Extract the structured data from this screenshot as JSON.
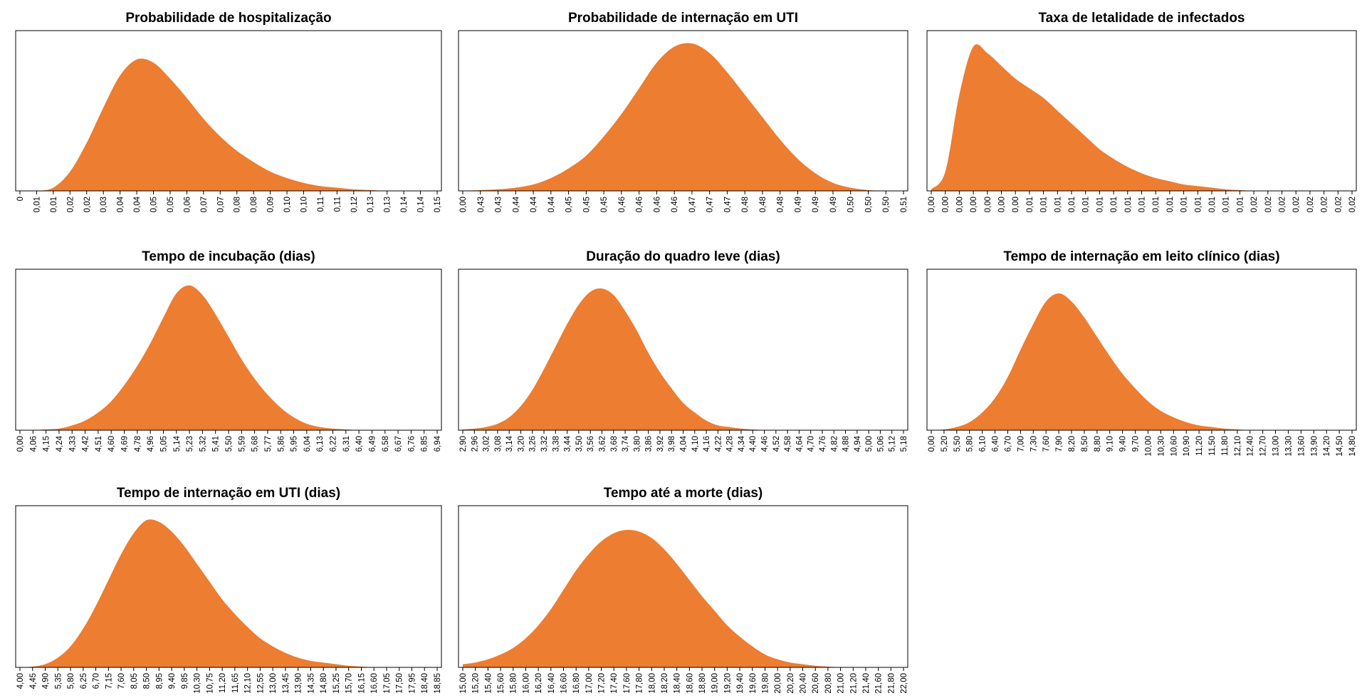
{
  "chart_data": [
    {
      "type": "area",
      "title": "Probabilidade de hospitalização",
      "color": "#ed7d31",
      "ylim": [
        0,
        100
      ],
      "categories": [
        "0",
        "0,01",
        "0,01",
        "0,02",
        "0,02",
        "0,03",
        "0,04",
        "0,04",
        "0,05",
        "0,05",
        "0,06",
        "0,07",
        "0,07",
        "0,08",
        "0,08",
        "0,09",
        "0,10",
        "0,10",
        "0,11",
        "0,11",
        "0,12",
        "0,13",
        "0,13",
        "0,14",
        "0,14",
        "0,15"
      ],
      "values": [
        0,
        0,
        2,
        12,
        30,
        52,
        72,
        82,
        80,
        70,
        58,
        45,
        34,
        25,
        18,
        12,
        8,
        5,
        3,
        2,
        1,
        0.5,
        0,
        0,
        0,
        0
      ]
    },
    {
      "type": "area",
      "title": "Probabilidade de internação em UTI",
      "color": "#ed7d31",
      "ylim": [
        0,
        100
      ],
      "categories": [
        "0,00",
        "0,43",
        "0,43",
        "0,44",
        "0,44",
        "0,44",
        "0,45",
        "0,45",
        "0,45",
        "0,46",
        "0,46",
        "0,46",
        "0,46",
        "0,47",
        "0,47",
        "0,47",
        "0,48",
        "0,48",
        "0,48",
        "0,49",
        "0,49",
        "0,49",
        "0,50",
        "0,50",
        "0,50",
        "0,51"
      ],
      "values": [
        0,
        0.5,
        1,
        2,
        4,
        8,
        14,
        22,
        34,
        48,
        64,
        80,
        90,
        92,
        86,
        74,
        60,
        46,
        32,
        20,
        11,
        5,
        2,
        0.5,
        0,
        0
      ]
    },
    {
      "type": "area",
      "title": "Taxa de letalidade de infectados",
      "color": "#ed7d31",
      "ylim": [
        0,
        100
      ],
      "categories": [
        "0,00",
        "0,00",
        "0,00",
        "0,00",
        "0,00",
        "0,00",
        "0,00",
        "0,01",
        "0,01",
        "0,01",
        "0,01",
        "0,01",
        "0,01",
        "0,01",
        "0,01",
        "0,01",
        "0,01",
        "0,01",
        "0,01",
        "0,01",
        "0,01",
        "0,01",
        "0,01",
        "0,02",
        "0,02",
        "0,02",
        "0,02",
        "0,02",
        "0,02",
        "0,02",
        "0,02"
      ],
      "values": [
        1,
        12,
        60,
        90,
        86,
        78,
        70,
        64,
        58,
        50,
        42,
        34,
        26,
        20,
        15,
        11,
        8,
        6,
        4,
        3,
        2,
        1,
        0.5,
        0,
        0,
        0,
        0,
        0,
        0,
        0,
        0
      ]
    },
    {
      "type": "area",
      "title": "Tempo de incubação (dias)",
      "color": "#ed7d31",
      "ylim": [
        0,
        100
      ],
      "categories": [
        "0,00",
        "4,06",
        "4,15",
        "4,24",
        "4,33",
        "4,42",
        "4,51",
        "4,60",
        "4,69",
        "4,78",
        "4,96",
        "5,05",
        "5,14",
        "5,23",
        "5,32",
        "5,41",
        "5,50",
        "5,59",
        "5,68",
        "5,77",
        "5,86",
        "5,95",
        "6,04",
        "6,13",
        "6,22",
        "6,31",
        "6,40",
        "6,49",
        "6,58",
        "6,67",
        "6,76",
        "6,85",
        "6,94"
      ],
      "values": [
        0,
        0,
        0.5,
        1,
        3,
        6,
        11,
        18,
        28,
        40,
        54,
        70,
        85,
        90,
        84,
        72,
        58,
        44,
        32,
        22,
        14,
        8,
        4,
        2,
        1,
        0.5,
        0,
        0,
        0,
        0,
        0,
        0,
        0
      ]
    },
    {
      "type": "area",
      "title": "Duração do quadro leve (dias)",
      "color": "#ed7d31",
      "ylim": [
        0,
        100
      ],
      "categories": [
        "2,90",
        "2,96",
        "3,02",
        "3,08",
        "3,14",
        "3,20",
        "3,26",
        "3,32",
        "3,38",
        "3,44",
        "3,50",
        "3,56",
        "3,62",
        "3,68",
        "3,74",
        "3,80",
        "3,86",
        "3,92",
        "3,98",
        "4,04",
        "4,10",
        "4,16",
        "4,22",
        "4,28",
        "4,34",
        "4,40",
        "4,46",
        "4,52",
        "4,58",
        "4,64",
        "4,70",
        "4,76",
        "4,82",
        "4,88",
        "4,94",
        "5,00",
        "5,06",
        "5,12",
        "5,18"
      ],
      "values": [
        0.5,
        1,
        2,
        4,
        8,
        15,
        25,
        38,
        52,
        66,
        78,
        86,
        88,
        84,
        74,
        62,
        48,
        36,
        26,
        17,
        11,
        6,
        3,
        2,
        1,
        0.5,
        0,
        0,
        0,
        0,
        0,
        0,
        0,
        0,
        0,
        0,
        0,
        0,
        0
      ]
    },
    {
      "type": "area",
      "title": "Tempo de internação em leito clínico (dias)",
      "color": "#ed7d31",
      "ylim": [
        0,
        100
      ],
      "categories": [
        "0,00",
        "5,20",
        "5,50",
        "5,80",
        "6,10",
        "6,40",
        "6,70",
        "7,00",
        "7,30",
        "7,60",
        "7,90",
        "8,20",
        "8,50",
        "8,80",
        "9,10",
        "9,40",
        "9,70",
        "10,00",
        "10,30",
        "10,60",
        "10,90",
        "11,20",
        "11,50",
        "11,80",
        "12,10",
        "12,40",
        "12,70",
        "13,00",
        "13,30",
        "13,60",
        "13,90",
        "14,20",
        "14,50",
        "14,80"
      ],
      "values": [
        0,
        0.5,
        2,
        5,
        11,
        20,
        33,
        50,
        66,
        80,
        85,
        80,
        70,
        58,
        46,
        35,
        26,
        18,
        12,
        8,
        5,
        3,
        2,
        1,
        0.5,
        0,
        0,
        0,
        0,
        0,
        0,
        0,
        0,
        0
      ]
    },
    {
      "type": "area",
      "title": "Tempo de internação em UTI (dias)",
      "color": "#ed7d31",
      "ylim": [
        0,
        100
      ],
      "categories": [
        "4,00",
        "4,45",
        "4,90",
        "5,35",
        "5,80",
        "6,25",
        "6,70",
        "7,15",
        "7,60",
        "8,05",
        "8,50",
        "8,95",
        "9,40",
        "9,85",
        "10,30",
        "10,75",
        "11,20",
        "11,65",
        "12,10",
        "12,55",
        "13,00",
        "13,45",
        "13,90",
        "14,35",
        "14,80",
        "15,25",
        "15,70",
        "16,15",
        "16,60",
        "17,05",
        "17,50",
        "17,95",
        "18,40",
        "18,85"
      ],
      "values": [
        0,
        0.5,
        2,
        6,
        13,
        24,
        38,
        54,
        70,
        83,
        91,
        90,
        84,
        75,
        64,
        53,
        42,
        33,
        25,
        18,
        13,
        9,
        6,
        4,
        3,
        2,
        1,
        0.5,
        0,
        0,
        0,
        0,
        0,
        0
      ]
    },
    {
      "type": "area",
      "title": "Tempo até a morte (dias)",
      "color": "#ed7d31",
      "ylim": [
        0,
        100
      ],
      "categories": [
        "15,00",
        "15,20",
        "15,40",
        "15,60",
        "15,80",
        "16,00",
        "16,20",
        "16,40",
        "16,60",
        "16,80",
        "17,00",
        "17,20",
        "17,40",
        "17,60",
        "17,80",
        "18,00",
        "18,20",
        "18,40",
        "18,60",
        "18,80",
        "19,00",
        "19,20",
        "19,40",
        "19,60",
        "19,80",
        "20,00",
        "20,20",
        "20,40",
        "20,60",
        "20,80",
        "21,00",
        "21,20",
        "21,40",
        "21,60",
        "21,80",
        "22,00"
      ],
      "values": [
        2,
        3,
        5,
        8,
        12,
        18,
        26,
        36,
        48,
        60,
        70,
        78,
        83,
        85,
        84,
        80,
        73,
        64,
        54,
        44,
        35,
        26,
        19,
        13,
        8,
        5,
        3,
        2,
        1,
        0.5,
        0,
        0,
        0,
        0,
        0,
        0
      ]
    }
  ]
}
